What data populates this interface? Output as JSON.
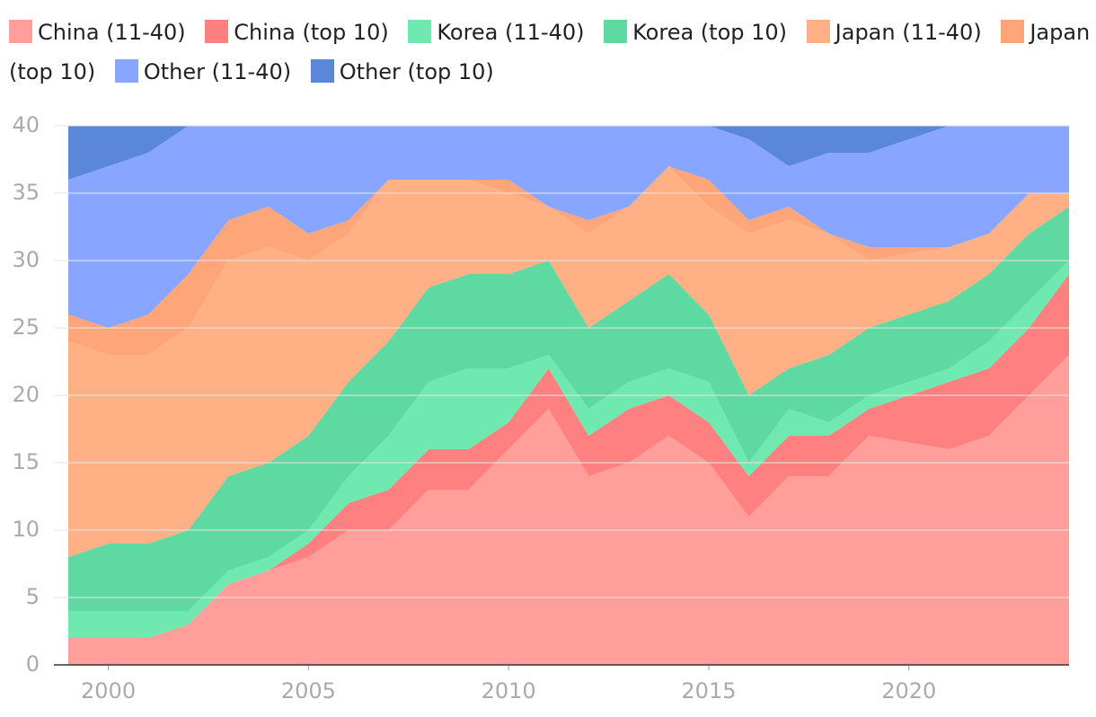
{
  "chart_data": {
    "type": "stacked-area",
    "x": [
      1999,
      2000,
      2001,
      2002,
      2003,
      2004,
      2005,
      2006,
      2007,
      2008,
      2009,
      2010,
      2011,
      2012,
      2013,
      2014,
      2015,
      2016,
      2017,
      2018,
      2019,
      2020,
      2021,
      2022,
      2023,
      2024
    ],
    "series": [
      {
        "name": "China (11-40)",
        "color": "#ff9e9b",
        "values": [
          2,
          2,
          2,
          3,
          6,
          7,
          8,
          10,
          10,
          13,
          13,
          16,
          19,
          14,
          15,
          17,
          15,
          11,
          14,
          14,
          17,
          16.5,
          16,
          17,
          20,
          23
        ]
      },
      {
        "name": "China (top 10)",
        "color": "#ff8080",
        "values": [
          0,
          0,
          0,
          0,
          0,
          0,
          1,
          2,
          3,
          3,
          3,
          2,
          3,
          3,
          4,
          3,
          3,
          3,
          3,
          3,
          2,
          3.5,
          5,
          5,
          5,
          6
        ]
      },
      {
        "name": "Korea (11-40)",
        "color": "#6fe9b0",
        "values": [
          2,
          2,
          2,
          1,
          1,
          1,
          1,
          2,
          4,
          5,
          6,
          4,
          1,
          2,
          2,
          2,
          3,
          1,
          2,
          1,
          1,
          1,
          1,
          2,
          2,
          1
        ]
      },
      {
        "name": "Korea (top 10)",
        "color": "#5dd9a1",
        "values": [
          4,
          5,
          5,
          6,
          7,
          7,
          7,
          7,
          7,
          7,
          7,
          7,
          7,
          6,
          6,
          7,
          5,
          5,
          3,
          5,
          5,
          5,
          5,
          5,
          5,
          4
        ]
      },
      {
        "name": "Japan (11-40)",
        "color": "#ffb085",
        "values": [
          16,
          14,
          14,
          15,
          16,
          16,
          13,
          11,
          12,
          8,
          7,
          6,
          4,
          7,
          7,
          8,
          8,
          12,
          11,
          9,
          5,
          4.5,
          4,
          3,
          3,
          1
        ]
      },
      {
        "name": "Japan (top 10)",
        "color": "#ffa57a",
        "values": [
          2,
          2,
          3,
          4,
          3,
          3,
          2,
          1,
          0,
          0,
          0,
          1,
          0,
          1,
          0,
          0,
          2,
          1,
          1,
          0,
          1,
          0.5,
          0,
          0,
          0,
          0
        ]
      },
      {
        "name": "Other (11-40)",
        "color": "#88a6ff",
        "values": [
          10,
          12,
          12,
          11,
          7,
          6,
          8,
          7,
          4,
          4,
          4,
          4,
          6,
          7,
          6,
          3,
          4,
          6,
          3,
          6,
          7,
          8,
          9,
          8,
          5,
          5
        ]
      },
      {
        "name": "Other (top 10)",
        "color": "#5b87d9",
        "values": [
          4,
          3,
          2,
          0,
          0,
          0,
          0,
          0,
          0,
          0,
          0,
          0,
          0,
          0,
          0,
          0,
          0,
          1,
          3,
          2,
          2,
          1,
          0,
          0,
          0,
          0
        ]
      }
    ],
    "xlim": [
      1999,
      2024
    ],
    "xticks": [
      2000,
      2005,
      2010,
      2015,
      2020
    ],
    "ylim": [
      0,
      40
    ],
    "yticks": [
      0,
      5,
      10,
      15,
      20,
      25,
      30,
      35,
      40
    ],
    "grid": true
  }
}
